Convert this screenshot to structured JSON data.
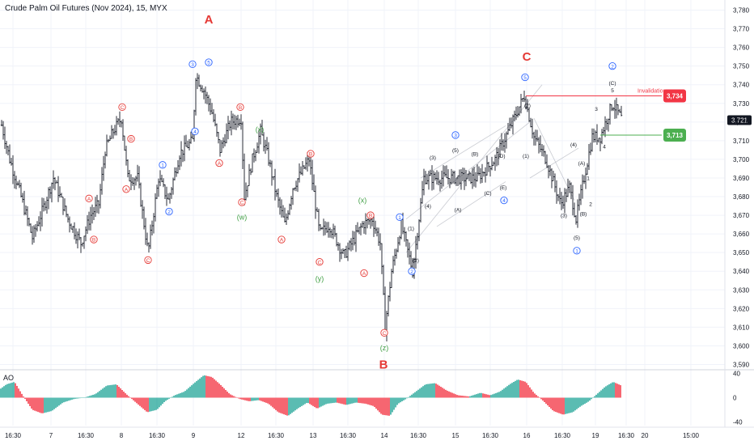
{
  "header": {
    "title": "Crude Palm Oil Futures (Nov 2024), 15, MYX"
  },
  "chart_data": {
    "type": "candlestick_ohlc",
    "symbol": "Crude Palm Oil Futures (Nov 2024)",
    "interval": "15",
    "exchange": "MYX",
    "ylim": [
      3585,
      3785
    ],
    "y_ticks": [
      "3,590",
      "3,600",
      "3,610",
      "3,620",
      "3,630",
      "3,640",
      "3,650",
      "3,660",
      "3,670",
      "3,680",
      "3,690",
      "3,700",
      "3,710",
      "3,720",
      "3,730",
      "3,740",
      "3,750",
      "3,760",
      "3,770",
      "3,780"
    ],
    "x_ticks": [
      "16:30",
      "7",
      "16:30",
      "8",
      "16:30",
      "9",
      "12",
      "16:30",
      "13",
      "16:30",
      "14",
      "16:30",
      "15",
      "16:30",
      "16",
      "16:30",
      "19",
      "16:30",
      "20",
      "15:00"
    ],
    "price_path": [
      [
        0,
        3722
      ],
      [
        12,
        3700
      ],
      [
        26,
        3680
      ],
      [
        40,
        3658
      ],
      [
        52,
        3672
      ],
      [
        66,
        3690
      ],
      [
        84,
        3668
      ],
      [
        100,
        3655
      ],
      [
        112,
        3670
      ],
      [
        122,
        3676
      ],
      [
        130,
        3705
      ],
      [
        140,
        3715
      ],
      [
        150,
        3722
      ],
      [
        158,
        3690
      ],
      [
        170,
        3690
      ],
      [
        183,
        3650
      ],
      [
        196,
        3690
      ],
      [
        208,
        3678
      ],
      [
        222,
        3703
      ],
      [
        238,
        3710
      ],
      [
        242,
        3745
      ],
      [
        252,
        3737
      ],
      [
        262,
        3725
      ],
      [
        272,
        3705
      ],
      [
        285,
        3720
      ],
      [
        298,
        3722
      ],
      [
        302,
        3680
      ],
      [
        312,
        3700
      ],
      [
        322,
        3715
      ],
      [
        332,
        3700
      ],
      [
        342,
        3680
      ],
      [
        352,
        3665
      ],
      [
        362,
        3685
      ],
      [
        382,
        3700
      ],
      [
        395,
        3660
      ],
      [
        407,
        3665
      ],
      [
        425,
        3648
      ],
      [
        448,
        3665
      ],
      [
        460,
        3668
      ],
      [
        470,
        3655
      ],
      [
        476,
        3610
      ],
      [
        484,
        3640
      ],
      [
        496,
        3665
      ],
      [
        510,
        3640
      ],
      [
        524,
        3690
      ],
      [
        546,
        3690
      ],
      [
        568,
        3690
      ],
      [
        590,
        3690
      ],
      [
        612,
        3700
      ],
      [
        625,
        3712
      ],
      [
        648,
        3734
      ],
      [
        660,
        3712
      ],
      [
        675,
        3700
      ],
      [
        693,
        3676
      ],
      [
        704,
        3685
      ],
      [
        712,
        3668
      ],
      [
        722,
        3690
      ],
      [
        732,
        3712
      ],
      [
        742,
        3712
      ],
      [
        757,
        3730
      ],
      [
        768,
        3722
      ]
    ],
    "last_price": "3,721",
    "level_labels": [
      {
        "text": "3,734",
        "color": "#f23645",
        "value": 3734
      },
      {
        "text": "3,713",
        "color": "#4caf50",
        "value": 3713
      }
    ],
    "annotations": {
      "invalidation": "Invalidation",
      "major_waves": [
        "A",
        "B",
        "C"
      ]
    },
    "wave_labels": [
      {
        "t": "A",
        "x": 258,
        "p": 3775,
        "c": "#e53935",
        "s": "big"
      },
      {
        "t": "B",
        "x": 474,
        "p": 3590,
        "c": "#e53935",
        "s": "big"
      },
      {
        "t": "C",
        "x": 651,
        "p": 3755,
        "c": "#e53935",
        "s": "big"
      },
      {
        "t": "3",
        "x": 238,
        "p": 3751,
        "c": "#2962ff",
        "s": "circ"
      },
      {
        "t": "5",
        "x": 258,
        "p": 3752,
        "c": "#2962ff",
        "s": "circ"
      },
      {
        "t": "4",
        "x": 241,
        "p": 3715,
        "c": "#2962ff",
        "s": "circ"
      },
      {
        "t": "1",
        "x": 201,
        "p": 3697,
        "c": "#2962ff",
        "s": "circ"
      },
      {
        "t": "2",
        "x": 209,
        "p": 3672,
        "c": "#2962ff",
        "s": "circ"
      },
      {
        "t": "C",
        "x": 151,
        "p": 3728,
        "c": "#e53935",
        "s": "circ"
      },
      {
        "t": "B",
        "x": 162,
        "p": 3711,
        "c": "#e53935",
        "s": "circ"
      },
      {
        "t": "A",
        "x": 156,
        "p": 3684,
        "c": "#e53935",
        "s": "circ"
      },
      {
        "t": "C",
        "x": 183,
        "p": 3646,
        "c": "#e53935",
        "s": "circ"
      },
      {
        "t": "A",
        "x": 110,
        "p": 3679,
        "c": "#e53935",
        "s": "circ"
      },
      {
        "t": "B",
        "x": 116,
        "p": 3657,
        "c": "#e53935",
        "s": "circ"
      },
      {
        "t": "B",
        "x": 297,
        "p": 3728,
        "c": "#e53935",
        "s": "circ"
      },
      {
        "t": "A",
        "x": 271,
        "p": 3698,
        "c": "#e53935",
        "s": "circ"
      },
      {
        "t": "C",
        "x": 299,
        "p": 3677,
        "c": "#e53935",
        "s": "circ"
      },
      {
        "t": "(x)",
        "x": 321,
        "p": 3716,
        "c": "#43a047",
        "s": "txt"
      },
      {
        "t": "(w)",
        "x": 299,
        "p": 3669,
        "c": "#43a047",
        "s": "txt"
      },
      {
        "t": "B",
        "x": 384,
        "p": 3703,
        "c": "#e53935",
        "s": "circ"
      },
      {
        "t": "A",
        "x": 348,
        "p": 3657,
        "c": "#e53935",
        "s": "circ"
      },
      {
        "t": "C",
        "x": 395,
        "p": 3645,
        "c": "#e53935",
        "s": "circ"
      },
      {
        "t": "(y)",
        "x": 395,
        "p": 3636,
        "c": "#43a047",
        "s": "txt"
      },
      {
        "t": "(x)",
        "x": 448,
        "p": 3678,
        "c": "#43a047",
        "s": "txt"
      },
      {
        "t": "B",
        "x": 458,
        "p": 3670,
        "c": "#e53935",
        "s": "circ"
      },
      {
        "t": "A",
        "x": 450,
        "p": 3639,
        "c": "#e53935",
        "s": "circ"
      },
      {
        "t": "C",
        "x": 475,
        "p": 3607,
        "c": "#e53935",
        "s": "circ"
      },
      {
        "t": "(z)",
        "x": 475,
        "p": 3599,
        "c": "#43a047",
        "s": "txt"
      },
      {
        "t": "1",
        "x": 494,
        "p": 3669,
        "c": "#2962ff",
        "s": "circ"
      },
      {
        "t": "2",
        "x": 509,
        "p": 3640,
        "c": "#2962ff",
        "s": "circ"
      },
      {
        "t": "(1)",
        "x": 508,
        "p": 3663,
        "c": "#131722",
        "s": "small"
      },
      {
        "t": "(2)",
        "x": 514,
        "p": 3646,
        "c": "#131722",
        "s": "small"
      },
      {
        "t": "(3)",
        "x": 535,
        "p": 3701,
        "c": "#131722",
        "s": "small"
      },
      {
        "t": "(4)",
        "x": 529,
        "p": 3675,
        "c": "#131722",
        "s": "small"
      },
      {
        "t": "3",
        "x": 563,
        "p": 3713,
        "c": "#2962ff",
        "s": "circ"
      },
      {
        "t": "(5)",
        "x": 563,
        "p": 3705,
        "c": "#131722",
        "s": "small"
      },
      {
        "t": "(A)",
        "x": 566,
        "p": 3673,
        "c": "#131722",
        "s": "small"
      },
      {
        "t": "(B)",
        "x": 587,
        "p": 3703,
        "c": "#131722",
        "s": "small"
      },
      {
        "t": "(C)",
        "x": 603,
        "p": 3682,
        "c": "#131722",
        "s": "small"
      },
      {
        "t": "(D)",
        "x": 620,
        "p": 3702,
        "c": "#131722",
        "s": "small"
      },
      {
        "t": "(E)",
        "x": 622,
        "p": 3685,
        "c": "#131722",
        "s": "small"
      },
      {
        "t": "4",
        "x": 623,
        "p": 3678,
        "c": "#2962ff",
        "s": "circ"
      },
      {
        "t": "5",
        "x": 649,
        "p": 3744,
        "c": "#2962ff",
        "s": "circ"
      },
      {
        "t": "(2)",
        "x": 652,
        "p": 3729,
        "c": "#131722",
        "s": "small"
      },
      {
        "t": "(1)",
        "x": 650,
        "p": 3702,
        "c": "#131722",
        "s": "small"
      },
      {
        "t": "(3)",
        "x": 697,
        "p": 3670,
        "c": "#131722",
        "s": "small"
      },
      {
        "t": "(4)",
        "x": 709,
        "p": 3708,
        "c": "#131722",
        "s": "small"
      },
      {
        "t": "(5)",
        "x": 713,
        "p": 3658,
        "c": "#131722",
        "s": "small"
      },
      {
        "t": "1",
        "x": 713,
        "p": 3651,
        "c": "#2962ff",
        "s": "circ"
      },
      {
        "t": "(A)",
        "x": 719,
        "p": 3698,
        "c": "#131722",
        "s": "small"
      },
      {
        "t": "(B)",
        "x": 721,
        "p": 3671,
        "c": "#131722",
        "s": "small"
      },
      {
        "t": "1",
        "x": 727,
        "p": 3690,
        "c": "#131722",
        "s": "small"
      },
      {
        "t": "2",
        "x": 730,
        "p": 3676,
        "c": "#131722",
        "s": "small"
      },
      {
        "t": "3",
        "x": 737,
        "p": 3727,
        "c": "#131722",
        "s": "small"
      },
      {
        "t": "4",
        "x": 747,
        "p": 3707,
        "c": "#131722",
        "s": "small"
      },
      {
        "t": "(C)",
        "x": 757,
        "p": 3741,
        "c": "#131722",
        "s": "small"
      },
      {
        "t": "5",
        "x": 757,
        "p": 3737,
        "c": "#131722",
        "s": "small"
      },
      {
        "t": "2",
        "x": 757,
        "p": 3750,
        "c": "#2962ff",
        "s": "circ"
      }
    ],
    "oscillator": {
      "name": "AO",
      "ylim": [
        -45,
        45
      ],
      "y_ticks": [
        "40",
        "0",
        "-40"
      ],
      "path": [
        [
          0,
          14
        ],
        [
          8,
          22
        ],
        [
          18,
          26
        ],
        [
          28,
          4
        ],
        [
          40,
          -20
        ],
        [
          52,
          -26
        ],
        [
          64,
          -22
        ],
        [
          78,
          -8
        ],
        [
          92,
          -2
        ],
        [
          104,
          0
        ],
        [
          118,
          6
        ],
        [
          132,
          20
        ],
        [
          144,
          22
        ],
        [
          156,
          6
        ],
        [
          168,
          -8
        ],
        [
          182,
          -24
        ],
        [
          194,
          -20
        ],
        [
          204,
          -6
        ],
        [
          216,
          4
        ],
        [
          228,
          10
        ],
        [
          240,
          24
        ],
        [
          252,
          37
        ],
        [
          262,
          34
        ],
        [
          272,
          22
        ],
        [
          284,
          6
        ],
        [
          296,
          -2
        ],
        [
          308,
          -6
        ],
        [
          320,
          -4
        ],
        [
          332,
          -10
        ],
        [
          344,
          -24
        ],
        [
          356,
          -30
        ],
        [
          368,
          -18
        ],
        [
          380,
          -8
        ],
        [
          392,
          -18
        ],
        [
          404,
          -10
        ],
        [
          416,
          -8
        ],
        [
          428,
          -12
        ],
        [
          440,
          -8
        ],
        [
          452,
          -10
        ],
        [
          462,
          -14
        ],
        [
          472,
          -28
        ],
        [
          482,
          -30
        ],
        [
          492,
          -10
        ],
        [
          502,
          -2
        ],
        [
          514,
          10
        ],
        [
          526,
          22
        ],
        [
          538,
          24
        ],
        [
          552,
          12
        ],
        [
          566,
          4
        ],
        [
          580,
          2
        ],
        [
          594,
          8
        ],
        [
          606,
          4
        ],
        [
          618,
          10
        ],
        [
          630,
          22
        ],
        [
          640,
          30
        ],
        [
          650,
          26
        ],
        [
          660,
          8
        ],
        [
          672,
          -6
        ],
        [
          684,
          -22
        ],
        [
          696,
          -28
        ],
        [
          708,
          -24
        ],
        [
          718,
          -14
        ],
        [
          728,
          -6
        ],
        [
          738,
          6
        ],
        [
          748,
          18
        ],
        [
          758,
          26
        ],
        [
          768,
          20
        ]
      ]
    }
  }
}
